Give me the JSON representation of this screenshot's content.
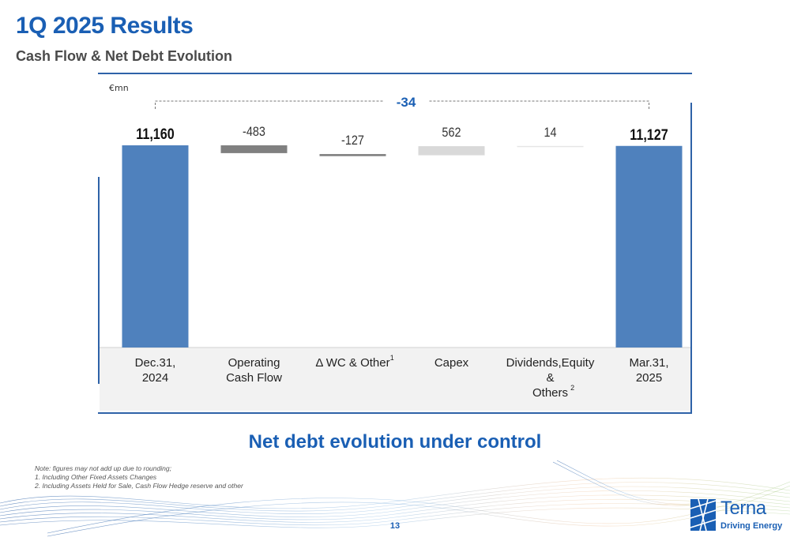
{
  "header": {
    "title": "1Q 2025 Results",
    "subtitle": "Cash Flow & Net Debt Evolution"
  },
  "chart_data": {
    "type": "bar",
    "subtype": "waterfall",
    "unit_label": "€mn",
    "delta_label": "-34",
    "categories": [
      {
        "lines": [
          "Dec.31,",
          "2024"
        ],
        "sup": ""
      },
      {
        "lines": [
          "Operating",
          "Cash Flow"
        ],
        "sup": ""
      },
      {
        "lines": [
          "Δ WC & Other"
        ],
        "sup": "1"
      },
      {
        "lines": [
          "Capex"
        ],
        "sup": ""
      },
      {
        "lines": [
          "Dividends,Equity",
          "&",
          "Others"
        ],
        "sup": "2"
      },
      {
        "lines": [
          "Mar.31,",
          "2025"
        ],
        "sup": ""
      }
    ],
    "values": [
      11160,
      -483,
      -127,
      562,
      14,
      11127
    ],
    "value_labels": [
      "11,160",
      "-483",
      "-127",
      "562",
      "14",
      "11,127"
    ],
    "kinds": [
      "total",
      "delta",
      "delta",
      "delta",
      "delta",
      "total"
    ],
    "colors": {
      "total": "#4f81bd",
      "operating": "#808080",
      "wc": "#7f7f7f",
      "capex": "#d9d9d9",
      "others": "#e6e6e6"
    },
    "bar_colors": [
      "#4f81bd",
      "#808080",
      "#7f7f7f",
      "#d9d9d9",
      "#e6e6e6",
      "#4f81bd"
    ],
    "baseline_break": true
  },
  "tagline": "Net debt evolution under control",
  "notes": [
    "Note: figures may not add up due to rounding;",
    "1. Including Other Fixed Assets Changes",
    "2. Including Assets Held for Sale, Cash Flow Hedge reserve and other"
  ],
  "page_number": "13",
  "logo": {
    "name": "Terna",
    "tagline": "Driving Energy",
    "color": "#1a5fb4"
  }
}
